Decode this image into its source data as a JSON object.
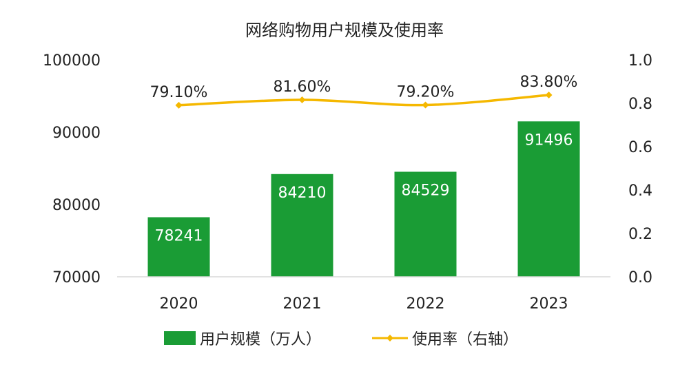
{
  "chart_data": {
    "type": "bar",
    "title": "网络购物用户规模及使用率",
    "categories": [
      "2020",
      "2021",
      "2022",
      "2023"
    ],
    "series": [
      {
        "name": "用户规模（万人）",
        "type": "bar",
        "axis": "left",
        "color": "#1a9c35",
        "values": [
          78241,
          84210,
          84529,
          91496
        ],
        "labels": [
          "78241",
          "84210",
          "84529",
          "91496"
        ]
      },
      {
        "name": "使用率（右轴）",
        "type": "line",
        "axis": "right",
        "color": "#f5b800",
        "values": [
          0.791,
          0.816,
          0.792,
          0.838
        ],
        "labels": [
          "79.10%",
          "81.60%",
          "79.20%",
          "83.80%"
        ]
      }
    ],
    "y_left": {
      "ylim": [
        70000,
        100000
      ],
      "ticks": [
        "70000",
        "80000",
        "90000",
        "100000"
      ]
    },
    "y_right": {
      "ylim": [
        0.0,
        1.0
      ],
      "ticks": [
        "0.0",
        "0.2",
        "0.4",
        "0.6",
        "0.8",
        "1.0"
      ]
    },
    "grid": false,
    "legend": "bottom"
  }
}
